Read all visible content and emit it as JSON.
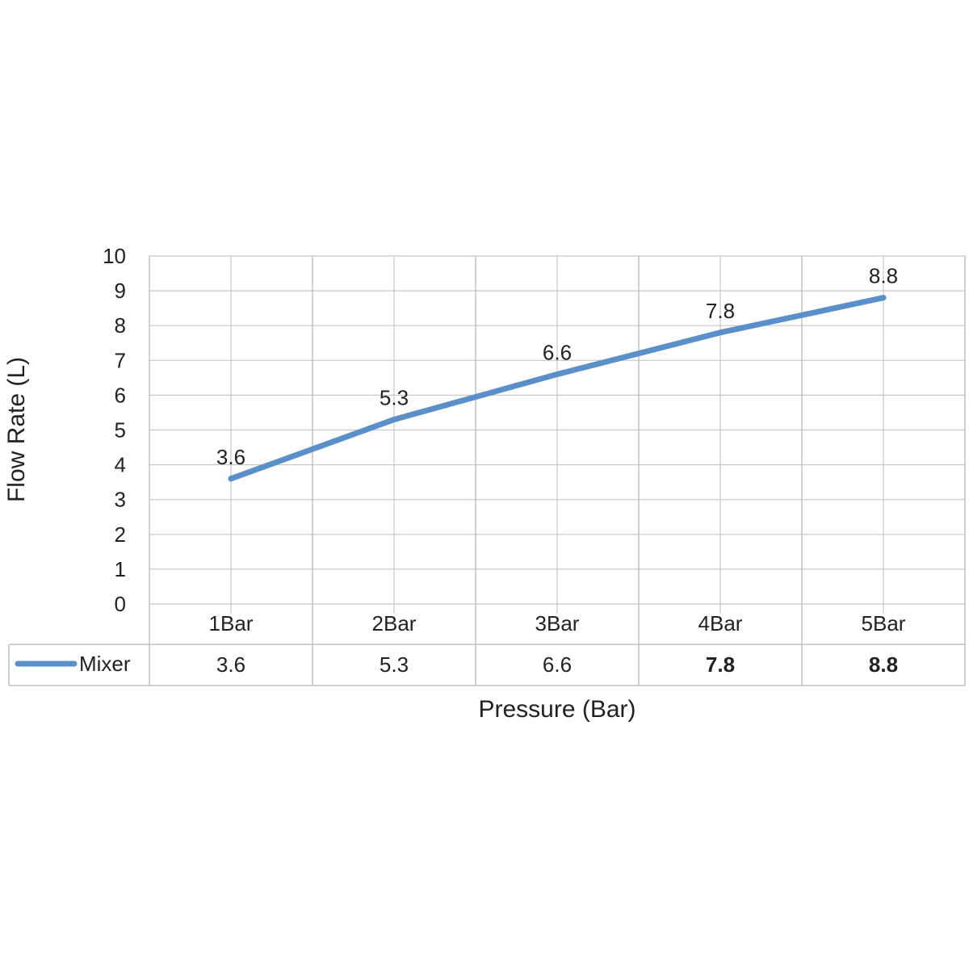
{
  "chart_data": {
    "type": "line",
    "categories": [
      "1Bar",
      "2Bar",
      "3Bar",
      "4Bar",
      "5Bar"
    ],
    "series": [
      {
        "name": "Mixer",
        "values": [
          3.6,
          5.3,
          6.6,
          7.8,
          8.8
        ],
        "color": "#5b8fc9"
      }
    ],
    "data_labels": [
      "3.6",
      "5.3",
      "6.6",
      "7.8",
      "8.8"
    ],
    "table_values": [
      "3.6",
      "5.3",
      "6.6",
      "7.8",
      "8.8"
    ],
    "table_bold": [
      false,
      false,
      false,
      true,
      true
    ],
    "xlabel": "Pressure (Bar)",
    "ylabel": "Flow Rate (L)",
    "ylim": [
      0,
      10
    ],
    "yticks": [
      "0",
      "1",
      "2",
      "3",
      "4",
      "5",
      "6",
      "7",
      "8",
      "9",
      "10"
    ],
    "grid": true,
    "legend": "data-table"
  }
}
